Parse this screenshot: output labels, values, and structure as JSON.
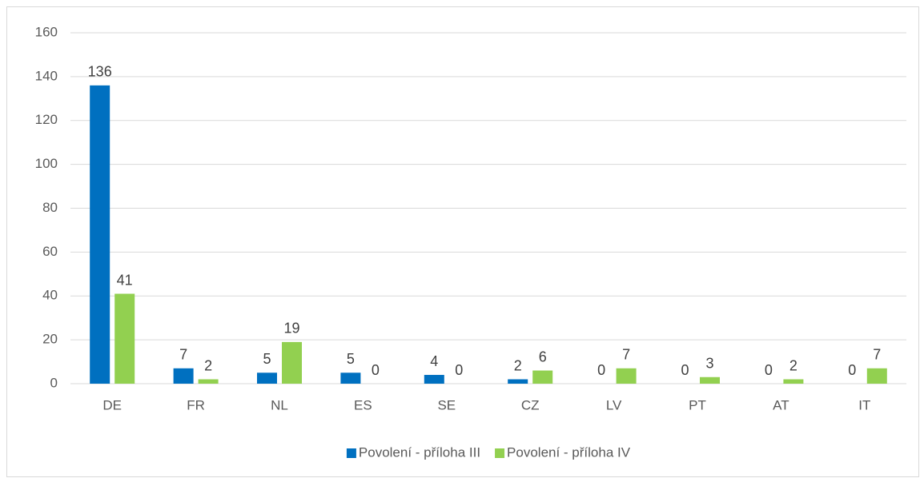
{
  "chart_data": {
    "type": "bar",
    "categories": [
      "DE",
      "FR",
      "NL",
      "ES",
      "SE",
      "CZ",
      "LV",
      "PT",
      "AT",
      "IT"
    ],
    "series": [
      {
        "name": "Povolení - příloha III",
        "color": "#0070c0",
        "values": [
          136,
          7,
          5,
          5,
          4,
          2,
          0,
          0,
          0,
          0
        ]
      },
      {
        "name": "Povolení - příloha IV",
        "color": "#92d050",
        "values": [
          41,
          2,
          19,
          0,
          0,
          6,
          7,
          3,
          2,
          7
        ]
      }
    ],
    "ylim": [
      0,
      160
    ],
    "yticks": [
      0,
      20,
      40,
      60,
      80,
      100,
      120,
      140,
      160
    ],
    "grid": true,
    "legend": "bottom"
  }
}
